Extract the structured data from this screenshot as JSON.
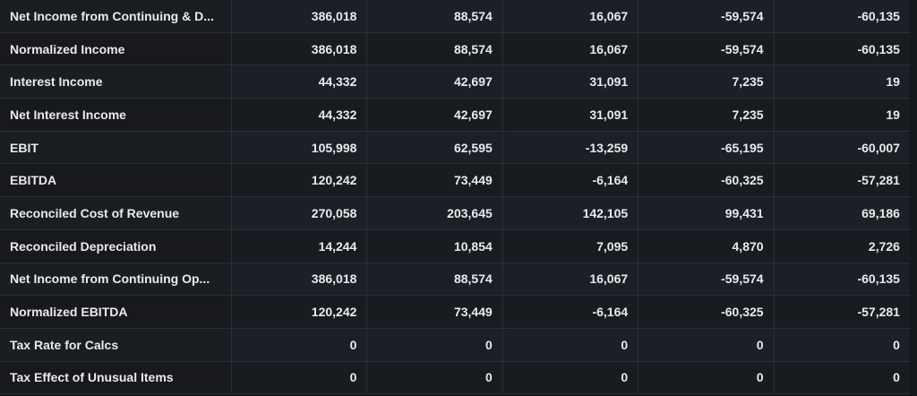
{
  "table": {
    "rows": [
      {
        "label": "Net Income from Continuing & D...",
        "values": [
          "386,018",
          "88,574",
          "16,067",
          "-59,574",
          "-60,135"
        ]
      },
      {
        "label": "Normalized Income",
        "values": [
          "386,018",
          "88,574",
          "16,067",
          "-59,574",
          "-60,135"
        ]
      },
      {
        "label": "Interest Income",
        "values": [
          "44,332",
          "42,697",
          "31,091",
          "7,235",
          "19"
        ]
      },
      {
        "label": "Net Interest Income",
        "values": [
          "44,332",
          "42,697",
          "31,091",
          "7,235",
          "19"
        ]
      },
      {
        "label": "EBIT",
        "values": [
          "105,998",
          "62,595",
          "-13,259",
          "-65,195",
          "-60,007"
        ]
      },
      {
        "label": "EBITDA",
        "values": [
          "120,242",
          "73,449",
          "-6,164",
          "-60,325",
          "-57,281"
        ]
      },
      {
        "label": "Reconciled Cost of Revenue",
        "values": [
          "270,058",
          "203,645",
          "142,105",
          "99,431",
          "69,186"
        ]
      },
      {
        "label": "Reconciled Depreciation",
        "values": [
          "14,244",
          "10,854",
          "7,095",
          "4,870",
          "2,726"
        ]
      },
      {
        "label": "Net Income from Continuing Op...",
        "values": [
          "386,018",
          "88,574",
          "16,067",
          "-59,574",
          "-60,135"
        ]
      },
      {
        "label": "Normalized EBITDA",
        "values": [
          "120,242",
          "73,449",
          "-6,164",
          "-60,325",
          "-57,281"
        ]
      },
      {
        "label": "Tax Rate for Calcs",
        "values": [
          "0",
          "0",
          "0",
          "0",
          "0"
        ]
      },
      {
        "label": "Tax Effect of Unusual Items",
        "values": [
          "0",
          "0",
          "0",
          "0",
          "0"
        ]
      }
    ]
  }
}
